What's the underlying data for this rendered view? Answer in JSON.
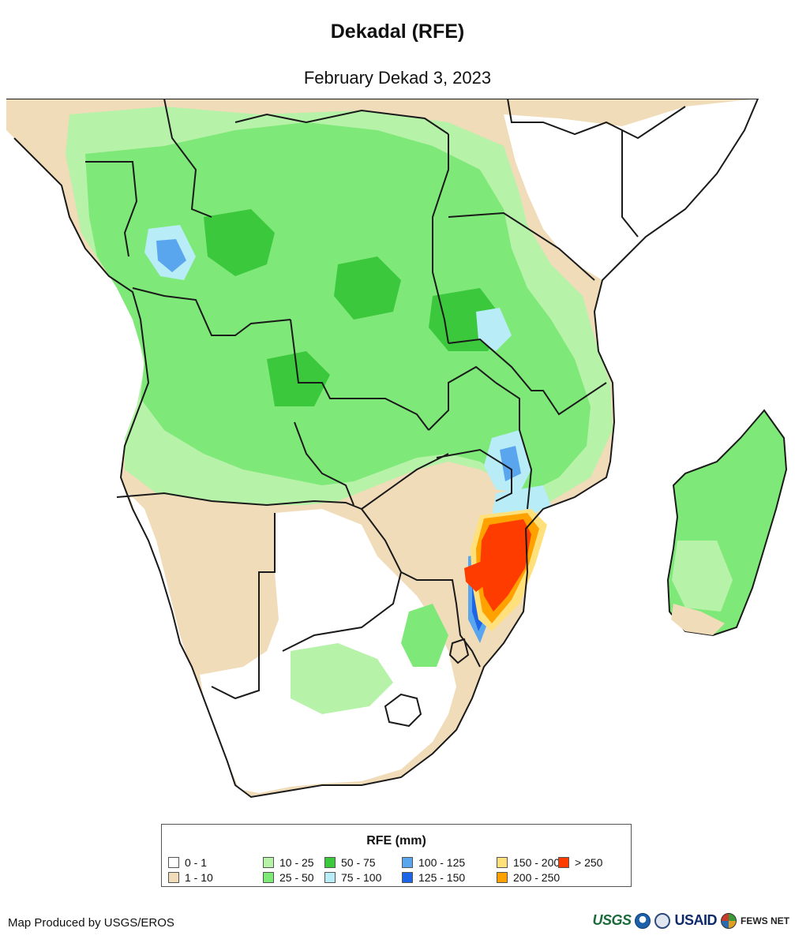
{
  "header": {
    "title": "Dekadal (RFE)",
    "subtitle": "February Dekad 3, 2023"
  },
  "legend": {
    "title": "RFE (mm)",
    "items": [
      {
        "label": "0 - 1",
        "color": "#ffffff"
      },
      {
        "label": "1 - 10",
        "color": "#f0dcb8"
      },
      {
        "label": "10 - 25",
        "color": "#b6f2a8"
      },
      {
        "label": "25 - 50",
        "color": "#7ee878"
      },
      {
        "label": "50 - 75",
        "color": "#3cc83c"
      },
      {
        "label": "75 - 100",
        "color": "#b8ecf6"
      },
      {
        "label": "100 - 125",
        "color": "#5aa6ee"
      },
      {
        "label": "125 - 150",
        "color": "#1e64e6"
      },
      {
        "label": "150 - 200",
        "color": "#ffe07a"
      },
      {
        "label": "200 - 250",
        "color": "#ffa200"
      },
      {
        "label": "> 250",
        "color": "#ff3c00"
      }
    ]
  },
  "footer": {
    "credit": "Map Produced by USGS/EROS",
    "logos": {
      "usgs": "USGS",
      "usaid": "USAID",
      "fews": "FEWS NET"
    }
  }
}
